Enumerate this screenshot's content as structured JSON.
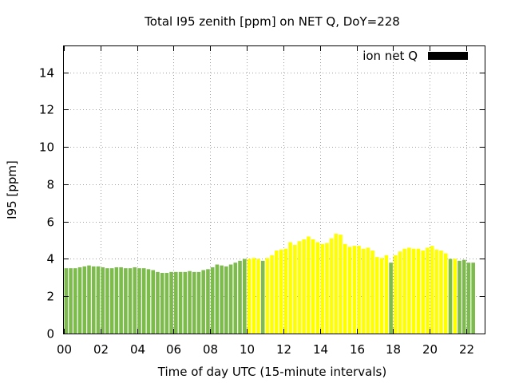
{
  "chart_data": {
    "type": "bar",
    "title": "Total I95 zenith [ppm] on NET Q, DoY=228",
    "xlabel": "Time of day UTC (15-minute intervals)",
    "ylabel": "I95 [ppm]",
    "xlim": [
      0,
      23
    ],
    "ylim": [
      0,
      15.4
    ],
    "xticks": [
      "00",
      "02",
      "04",
      "06",
      "08",
      "10",
      "12",
      "14",
      "16",
      "18",
      "20",
      "22"
    ],
    "yticks": [
      "0",
      "2",
      "4",
      "6",
      "8",
      "10",
      "12",
      "14"
    ],
    "grid": true,
    "legend": {
      "label": "ion net Q",
      "placement": "top-right",
      "color": "#000000"
    },
    "colors": {
      "green": "#7cbb4c",
      "yellow": "#ffff00"
    },
    "bin_hours": 0.25,
    "values": [
      3.5,
      3.5,
      3.5,
      3.55,
      3.6,
      3.65,
      3.6,
      3.6,
      3.55,
      3.5,
      3.5,
      3.55,
      3.55,
      3.5,
      3.5,
      3.55,
      3.5,
      3.5,
      3.45,
      3.4,
      3.3,
      3.25,
      3.25,
      3.3,
      3.3,
      3.3,
      3.3,
      3.35,
      3.3,
      3.3,
      3.4,
      3.45,
      3.55,
      3.7,
      3.65,
      3.6,
      3.7,
      3.8,
      3.9,
      4.0,
      4.0,
      4.05,
      4.0,
      3.9,
      4.05,
      4.2,
      4.45,
      4.5,
      4.55,
      4.9,
      4.75,
      4.95,
      5.05,
      5.2,
      5.05,
      4.9,
      4.8,
      4.85,
      5.1,
      5.35,
      5.3,
      4.8,
      4.65,
      4.7,
      4.7,
      4.55,
      4.6,
      4.45,
      4.1,
      4.05,
      4.2,
      3.8,
      4.2,
      4.4,
      4.55,
      4.6,
      4.55,
      4.55,
      4.45,
      4.6,
      4.7,
      4.5,
      4.45,
      4.3,
      4.0,
      4.0,
      3.9,
      3.95,
      3.8,
      3.8
    ],
    "bar_colors": [
      "green",
      "green",
      "green",
      "green",
      "green",
      "green",
      "green",
      "green",
      "green",
      "green",
      "green",
      "green",
      "green",
      "green",
      "green",
      "green",
      "green",
      "green",
      "green",
      "green",
      "green",
      "green",
      "green",
      "green",
      "green",
      "green",
      "green",
      "green",
      "green",
      "green",
      "green",
      "green",
      "green",
      "green",
      "green",
      "green",
      "green",
      "green",
      "green",
      "green",
      "yellow",
      "yellow",
      "yellow",
      "green",
      "yellow",
      "yellow",
      "yellow",
      "yellow",
      "yellow",
      "yellow",
      "yellow",
      "yellow",
      "yellow",
      "yellow",
      "yellow",
      "yellow",
      "yellow",
      "yellow",
      "yellow",
      "yellow",
      "yellow",
      "yellow",
      "yellow",
      "yellow",
      "yellow",
      "yellow",
      "yellow",
      "yellow",
      "yellow",
      "yellow",
      "yellow",
      "green",
      "yellow",
      "yellow",
      "yellow",
      "yellow",
      "yellow",
      "yellow",
      "yellow",
      "yellow",
      "yellow",
      "yellow",
      "yellow",
      "yellow",
      "green",
      "yellow",
      "green",
      "green",
      "green",
      "green"
    ]
  }
}
